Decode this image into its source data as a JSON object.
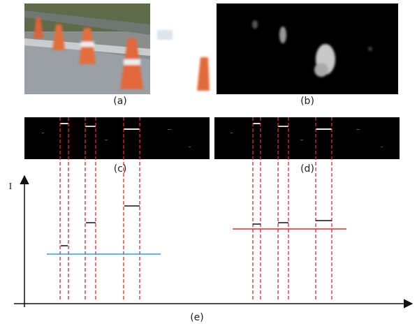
{
  "figure": {
    "labels": {
      "a": "(a)",
      "b": "(b)",
      "c": "(c)",
      "d": "(d)",
      "e": "(e)"
    },
    "axis_label": "I"
  }
}
